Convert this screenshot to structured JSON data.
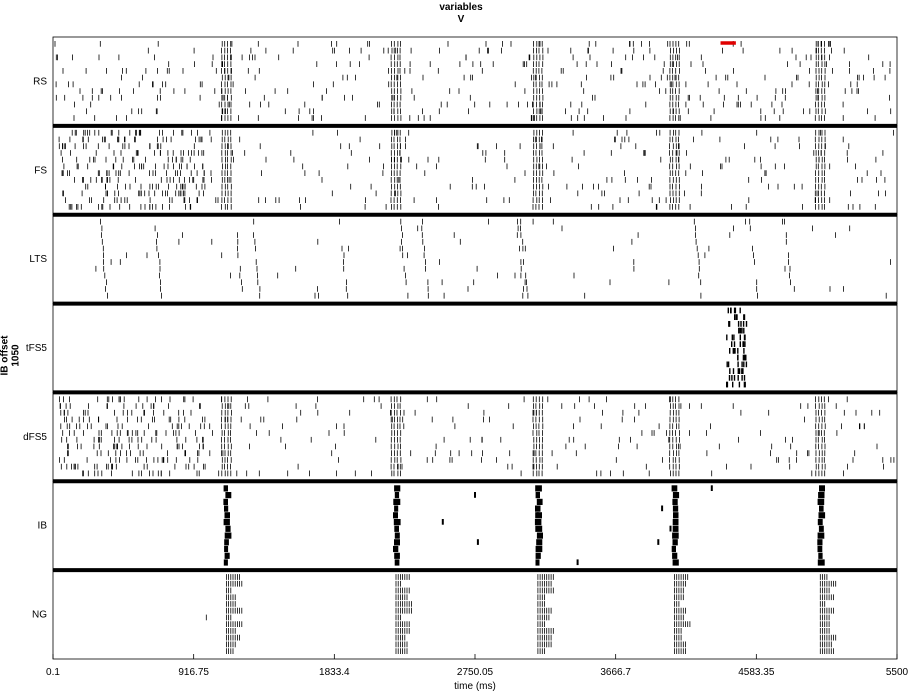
{
  "chart_data": {
    "type": "raster",
    "title": "variables",
    "subtitle": "V",
    "side_label": "IB offset",
    "side_value": "1050",
    "xlabel": "time (ms)",
    "xlim": [
      0.1,
      5500
    ],
    "xticks": [
      "0.1",
      "916.75",
      "1833.4",
      "2750.05",
      "3666.7",
      "4583.35",
      "5500"
    ],
    "xtick_values": [
      0.1,
      916.75,
      1833.4,
      2750.05,
      3666.7,
      4583.35,
      5500
    ],
    "grid": false,
    "bursts_ms": [
      1130,
      2235,
      3160,
      4050,
      5000
    ],
    "red_marker_ms": [
      4350,
      4450
    ],
    "panels": [
      {
        "label": "RS",
        "style": "sparse",
        "events_per_row": 32,
        "rows": 12,
        "burst": true
      },
      {
        "label": "FS",
        "style": "dense",
        "events_per_row": 40,
        "rows": 12,
        "burst": true
      },
      {
        "label": "LTS",
        "style": "waves",
        "wave_times_ms": [
          1320,
          2420,
          3040,
          4200,
          4790
        ],
        "rows": 12
      },
      {
        "label": "tFS5",
        "style": "cluster",
        "cluster_ms": [
          4390,
          4520
        ],
        "rows": 12
      },
      {
        "label": "dFS5",
        "style": "dense",
        "events_per_row": 36,
        "rows": 12,
        "burst": true
      },
      {
        "label": "IB",
        "style": "ib",
        "rows": 12,
        "burst": true
      },
      {
        "label": "NG",
        "style": "ng",
        "rows": 12,
        "burst": true
      }
    ]
  }
}
